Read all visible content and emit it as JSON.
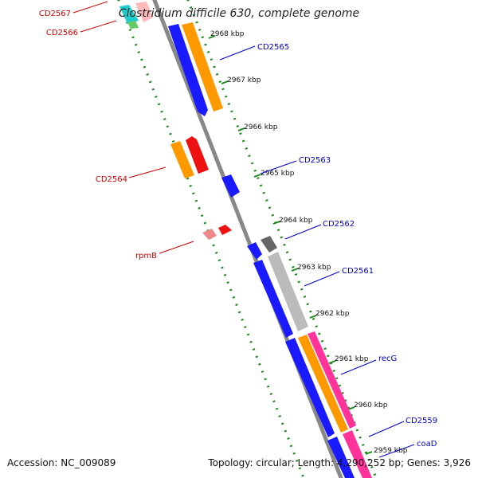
{
  "title": "Clostridium difficile 630, complete genome",
  "footer": {
    "accession": "Accession: NC_009089",
    "summary": "Topology: circular; Length: 4,290,252 bp; Genes: 3,926"
  },
  "ticks": [
    "2968 kbp",
    "2967 kbp",
    "2966 kbp",
    "2965 kbp",
    "2964 kbp",
    "2963 kbp",
    "2962 kbp",
    "2961 kbp",
    "2960 kbp",
    "2959 kbp"
  ],
  "gene_labels_minus": [
    "CD2567",
    "CD2566",
    "CD2564",
    "rpmB"
  ],
  "gene_labels_plus": [
    "CD2565",
    "CD2563",
    "CD2562",
    "CD2561",
    "recG",
    "CD2559",
    "coaD"
  ],
  "colors": {
    "blue": "#1a1aff",
    "orange": "#ff9900",
    "red": "#ee1111",
    "gray": "#888888",
    "silver": "#bbbbbb",
    "pink": "#ff3399",
    "cyan": "#22cccc",
    "green_dots": "#1a8a1a",
    "label_red": "#cc0000",
    "label_blue": "#0000cc"
  }
}
